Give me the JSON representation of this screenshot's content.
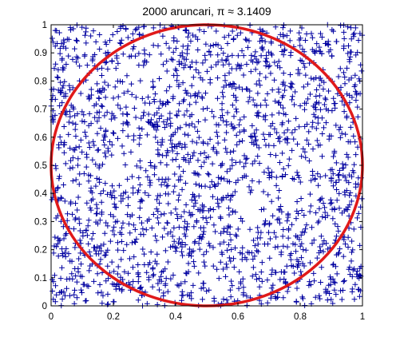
{
  "chart_data": {
    "type": "scatter",
    "title": "2000 aruncari,   π ≈ 3.1409",
    "xlabel": "",
    "ylabel": "",
    "xlim": [
      0,
      1
    ],
    "ylim": [
      0,
      1
    ],
    "xticks": [
      "0",
      "0.2",
      "0.4",
      "0.6",
      "0.8",
      "1"
    ],
    "yticks": [
      "0",
      "0.1",
      "0.2",
      "0.3",
      "0.4",
      "0.5",
      "0.6",
      "0.7",
      "0.8",
      "0.9",
      "1"
    ],
    "grid": false,
    "legend": "none",
    "marker": "+",
    "marker_color": "#0000a0",
    "circle_color": "#e01a1a",
    "num_points": 2000,
    "pi_estimate": 3.1409,
    "circle": {
      "center": [
        0.5,
        0.5
      ],
      "radius": 0.5
    }
  }
}
